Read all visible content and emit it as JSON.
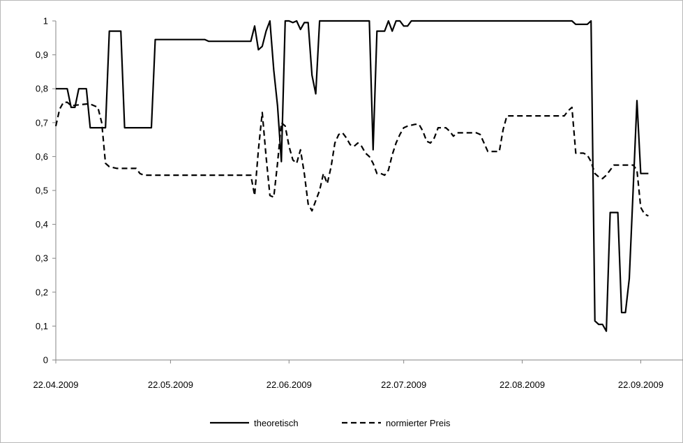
{
  "chart_data": {
    "type": "line",
    "title": "",
    "xlabel": "",
    "ylabel": "",
    "x_ticks": [
      "22.04.2009",
      "22.05.2009",
      "22.06.2009",
      "22.07.2009",
      "22.08.2009",
      "22.09.2009"
    ],
    "y_ticks": [
      "0",
      "0,1",
      "0,2",
      "0,3",
      "0,4",
      "0,5",
      "0,6",
      "0,7",
      "0,8",
      "0,9",
      "1"
    ],
    "ylim": [
      0,
      1
    ],
    "xlim": [
      "2009-04-22",
      "2009-09-28"
    ],
    "grid": false,
    "legend_position": "bottom",
    "series": [
      {
        "name": "theoretisch",
        "style": "solid",
        "color": "#000000",
        "points": [
          [
            "2009-04-22",
            0.8
          ],
          [
            "2009-04-25",
            0.8
          ],
          [
            "2009-04-26",
            0.745
          ],
          [
            "2009-04-27",
            0.745
          ],
          [
            "2009-04-28",
            0.8
          ],
          [
            "2009-04-30",
            0.8
          ],
          [
            "2009-05-01",
            0.685
          ],
          [
            "2009-05-05",
            0.685
          ],
          [
            "2009-05-06",
            0.97
          ],
          [
            "2009-05-09",
            0.97
          ],
          [
            "2009-05-10",
            0.685
          ],
          [
            "2009-05-17",
            0.685
          ],
          [
            "2009-05-18",
            0.945
          ],
          [
            "2009-05-31",
            0.945
          ],
          [
            "2009-06-01",
            0.94
          ],
          [
            "2009-06-12",
            0.94
          ],
          [
            "2009-06-13",
            0.985
          ],
          [
            "2009-06-14",
            0.915
          ],
          [
            "2009-06-15",
            0.925
          ],
          [
            "2009-06-16",
            0.97
          ],
          [
            "2009-06-17",
            1.0
          ],
          [
            "2009-06-18",
            0.855
          ],
          [
            "2009-06-19",
            0.75
          ],
          [
            "2009-06-20",
            0.585
          ],
          [
            "2009-06-21",
            1.0
          ],
          [
            "2009-06-22",
            1.0
          ],
          [
            "2009-06-23",
            0.995
          ],
          [
            "2009-06-24",
            1.0
          ],
          [
            "2009-06-25",
            0.975
          ],
          [
            "2009-06-26",
            0.995
          ],
          [
            "2009-06-27",
            0.995
          ],
          [
            "2009-06-28",
            0.84
          ],
          [
            "2009-06-29",
            0.785
          ],
          [
            "2009-06-30",
            1.0
          ],
          [
            "2009-07-13",
            1.0
          ],
          [
            "2009-07-14",
            0.62
          ],
          [
            "2009-07-15",
            0.97
          ],
          [
            "2009-07-17",
            0.97
          ],
          [
            "2009-07-18",
            1.0
          ],
          [
            "2009-07-19",
            0.97
          ],
          [
            "2009-07-20",
            1.0
          ],
          [
            "2009-07-21",
            1.0
          ],
          [
            "2009-07-22",
            0.985
          ],
          [
            "2009-07-23",
            0.985
          ],
          [
            "2009-07-24",
            1.0
          ],
          [
            "2009-09-04",
            1.0
          ],
          [
            "2009-09-05",
            0.99
          ],
          [
            "2009-09-08",
            0.99
          ],
          [
            "2009-09-09",
            1.0
          ],
          [
            "2009-09-10",
            0.115
          ],
          [
            "2009-09-11",
            0.105
          ],
          [
            "2009-09-12",
            0.105
          ],
          [
            "2009-09-13",
            0.085
          ],
          [
            "2009-09-14",
            0.435
          ],
          [
            "2009-09-16",
            0.435
          ],
          [
            "2009-09-17",
            0.14
          ],
          [
            "2009-09-18",
            0.14
          ],
          [
            "2009-09-19",
            0.24
          ],
          [
            "2009-09-20",
            0.5
          ],
          [
            "2009-09-21",
            0.765
          ],
          [
            "2009-09-22",
            0.55
          ],
          [
            "2009-09-24",
            0.55
          ]
        ]
      },
      {
        "name": "normierter Preis",
        "style": "dashed",
        "color": "#000000",
        "points": [
          [
            "2009-04-22",
            0.69
          ],
          [
            "2009-04-23",
            0.74
          ],
          [
            "2009-04-24",
            0.76
          ],
          [
            "2009-04-25",
            0.76
          ],
          [
            "2009-04-26",
            0.75
          ],
          [
            "2009-04-30",
            0.755
          ],
          [
            "2009-05-01",
            0.755
          ],
          [
            "2009-05-03",
            0.745
          ],
          [
            "2009-05-04",
            0.7
          ],
          [
            "2009-05-05",
            0.58
          ],
          [
            "2009-05-06",
            0.57
          ],
          [
            "2009-05-08",
            0.565
          ],
          [
            "2009-05-13",
            0.565
          ],
          [
            "2009-05-14",
            0.55
          ],
          [
            "2009-05-15",
            0.545
          ],
          [
            "2009-06-12",
            0.545
          ],
          [
            "2009-06-13",
            0.485
          ],
          [
            "2009-06-14",
            0.62
          ],
          [
            "2009-06-15",
            0.73
          ],
          [
            "2009-06-16",
            0.6
          ],
          [
            "2009-06-17",
            0.485
          ],
          [
            "2009-06-18",
            0.48
          ],
          [
            "2009-06-19",
            0.58
          ],
          [
            "2009-06-20",
            0.7
          ],
          [
            "2009-06-21",
            0.69
          ],
          [
            "2009-06-22",
            0.63
          ],
          [
            "2009-06-23",
            0.59
          ],
          [
            "2009-06-24",
            0.58
          ],
          [
            "2009-06-25",
            0.62
          ],
          [
            "2009-06-26",
            0.55
          ],
          [
            "2009-06-27",
            0.46
          ],
          [
            "2009-06-28",
            0.44
          ],
          [
            "2009-06-29",
            0.47
          ],
          [
            "2009-06-30",
            0.5
          ],
          [
            "2009-07-01",
            0.55
          ],
          [
            "2009-07-02",
            0.52
          ],
          [
            "2009-07-03",
            0.57
          ],
          [
            "2009-07-04",
            0.64
          ],
          [
            "2009-07-05",
            0.665
          ],
          [
            "2009-07-06",
            0.67
          ],
          [
            "2009-07-07",
            0.655
          ],
          [
            "2009-07-08",
            0.635
          ],
          [
            "2009-07-09",
            0.63
          ],
          [
            "2009-07-10",
            0.64
          ],
          [
            "2009-07-11",
            0.63
          ],
          [
            "2009-07-12",
            0.61
          ],
          [
            "2009-07-13",
            0.6
          ],
          [
            "2009-07-14",
            0.58
          ],
          [
            "2009-07-15",
            0.55
          ],
          [
            "2009-07-16",
            0.55
          ],
          [
            "2009-07-17",
            0.545
          ],
          [
            "2009-07-18",
            0.56
          ],
          [
            "2009-07-19",
            0.605
          ],
          [
            "2009-07-20",
            0.64
          ],
          [
            "2009-07-21",
            0.665
          ],
          [
            "2009-07-22",
            0.685
          ],
          [
            "2009-07-23",
            0.69
          ],
          [
            "2009-07-25",
            0.695
          ],
          [
            "2009-07-26",
            0.695
          ],
          [
            "2009-07-27",
            0.675
          ],
          [
            "2009-07-28",
            0.645
          ],
          [
            "2009-07-29",
            0.64
          ],
          [
            "2009-07-30",
            0.655
          ],
          [
            "2009-07-31",
            0.685
          ],
          [
            "2009-08-02",
            0.685
          ],
          [
            "2009-08-03",
            0.675
          ],
          [
            "2009-08-04",
            0.66
          ],
          [
            "2009-08-05",
            0.67
          ],
          [
            "2009-08-10",
            0.67
          ],
          [
            "2009-08-11",
            0.665
          ],
          [
            "2009-08-12",
            0.64
          ],
          [
            "2009-08-13",
            0.615
          ],
          [
            "2009-08-16",
            0.615
          ],
          [
            "2009-08-17",
            0.68
          ],
          [
            "2009-08-18",
            0.72
          ],
          [
            "2009-09-02",
            0.72
          ],
          [
            "2009-09-03",
            0.735
          ],
          [
            "2009-09-04",
            0.745
          ],
          [
            "2009-09-05",
            0.61
          ],
          [
            "2009-09-07",
            0.61
          ],
          [
            "2009-09-08",
            0.605
          ],
          [
            "2009-09-09",
            0.585
          ],
          [
            "2009-09-10",
            0.55
          ],
          [
            "2009-09-11",
            0.54
          ],
          [
            "2009-09-12",
            0.535
          ],
          [
            "2009-09-13",
            0.545
          ],
          [
            "2009-09-14",
            0.56
          ],
          [
            "2009-09-15",
            0.575
          ],
          [
            "2009-09-20",
            0.575
          ],
          [
            "2009-09-21",
            0.56
          ],
          [
            "2009-09-22",
            0.45
          ],
          [
            "2009-09-23",
            0.43
          ],
          [
            "2009-09-24",
            0.425
          ]
        ]
      }
    ]
  }
}
